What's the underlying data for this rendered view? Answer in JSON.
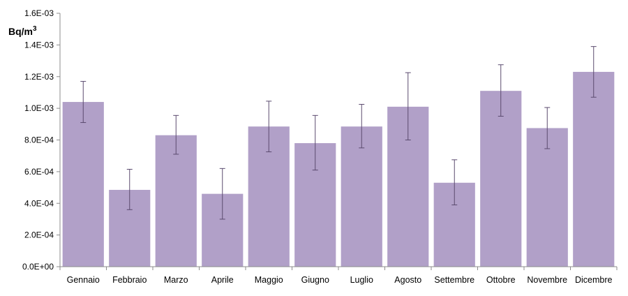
{
  "chart_data": {
    "type": "bar",
    "title": "",
    "xlabel": "",
    "ylabel": "Bq/m",
    "ylabel_superscript": "3",
    "ylim": [
      0,
      0.0016
    ],
    "yticks": [
      0,
      0.0002,
      0.0004,
      0.0006,
      0.0008,
      0.001,
      0.0012,
      0.0014,
      0.0016
    ],
    "ytick_labels": [
      "0.0E+00",
      "2.0E-04",
      "4.0E-04",
      "6.0E-04",
      "8.0E-04",
      "1.0E-03",
      "1.2E-03",
      "1.4E-03",
      "1.6E-03"
    ],
    "grid": false,
    "legend": "none",
    "bar_color": "#b1a0c8",
    "error_bar_color": "#5a4a6e",
    "categories": [
      "Gennaio",
      "Febbraio",
      "Marzo",
      "Aprile",
      "Maggio",
      "Giugno",
      "Luglio",
      "Agosto",
      "Settembre",
      "Ottobre",
      "Novembre",
      "Dicembre"
    ],
    "values": [
      0.00104,
      0.000485,
      0.00083,
      0.00046,
      0.000885,
      0.00078,
      0.000885,
      0.00101,
      0.00053,
      0.00111,
      0.000875,
      0.00123
    ],
    "error_low": [
      0.00091,
      0.00036,
      0.00071,
      0.0003,
      0.000725,
      0.00061,
      0.00075,
      0.0008,
      0.00039,
      0.00095,
      0.000745,
      0.00107
    ],
    "error_high": [
      0.00117,
      0.000615,
      0.000955,
      0.00062,
      0.001045,
      0.000955,
      0.001025,
      0.001225,
      0.000675,
      0.001275,
      0.001005,
      0.00139
    ]
  }
}
